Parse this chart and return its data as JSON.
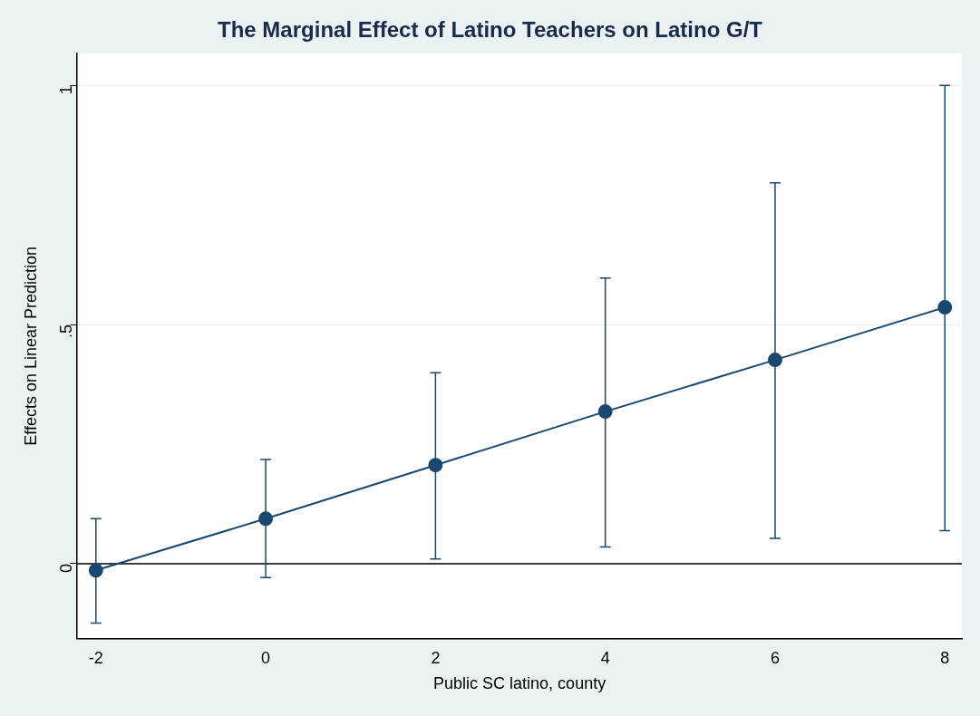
{
  "chart_data": {
    "type": "line",
    "title": "The Marginal Effect of Latino Teachers on Latino G/T",
    "xlabel": "Public SC latino, county",
    "ylabel": "Effects on Linear Prediction",
    "x": [
      -2,
      0,
      2,
      4,
      6,
      8
    ],
    "series": [
      {
        "color": "#1a476f",
        "values": [
          -0.014,
          0.094,
          0.206,
          0.318,
          0.426,
          0.536
        ],
        "errors": [
          [
            -0.124,
            0.094
          ],
          [
            -0.029,
            0.218
          ],
          [
            0.01,
            0.399
          ],
          [
            0.035,
            0.597
          ],
          [
            0.053,
            0.796
          ],
          [
            0.069,
            1.0
          ]
        ]
      }
    ],
    "xlim": [
      -2.22,
      8.2
    ],
    "xticks": [
      -2,
      0,
      2,
      4,
      6,
      8
    ],
    "ylim": [
      -0.157,
      1.067
    ],
    "yticks": [
      0,
      {
        "value": 0.5,
        "label": ".5"
      },
      1
    ],
    "ref_lines": [
      {
        "axis": "y",
        "value": 0,
        "color": "#000000"
      }
    ],
    "grid": "y",
    "marker": "circle",
    "line_style": "solid",
    "legend": false
  }
}
